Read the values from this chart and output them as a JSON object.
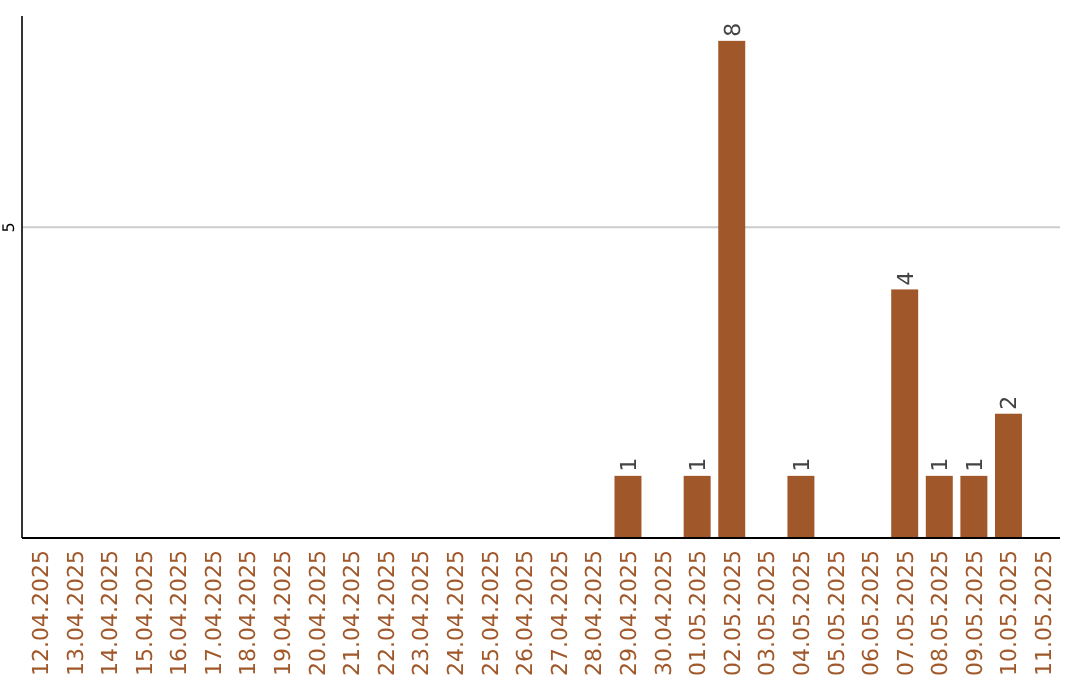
{
  "chart_data": {
    "type": "bar",
    "categories": [
      "12.04.2025",
      "13.04.2025",
      "14.04.2025",
      "15.04.2025",
      "16.04.2025",
      "17.04.2025",
      "18.04.2025",
      "19.04.2025",
      "20.04.2025",
      "21.04.2025",
      "22.04.2025",
      "23.04.2025",
      "24.04.2025",
      "25.04.2025",
      "26.04.2025",
      "27.04.2025",
      "28.04.2025",
      "29.04.2025",
      "30.04.2025",
      "01.05.2025",
      "02.05.2025",
      "03.05.2025",
      "04.05.2025",
      "05.05.2025",
      "06.05.2025",
      "07.05.2025",
      "08.05.2025",
      "09.05.2025",
      "10.05.2025",
      "11.05.2025"
    ],
    "values": [
      null,
      null,
      null,
      null,
      null,
      null,
      null,
      null,
      null,
      null,
      null,
      null,
      null,
      null,
      null,
      null,
      null,
      1,
      null,
      1,
      8,
      null,
      1,
      null,
      null,
      4,
      1,
      1,
      2,
      null
    ],
    "color": "#a0582a",
    "ylim": [
      0,
      8.4
    ],
    "yticks": [
      5
    ],
    "grid": "y",
    "data_labels": true
  }
}
